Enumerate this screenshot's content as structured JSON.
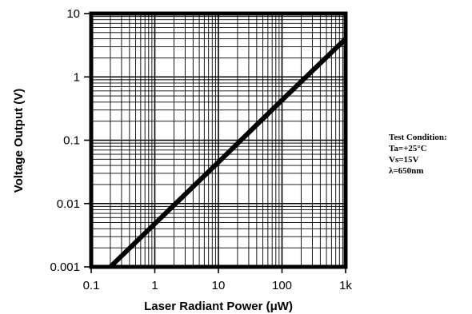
{
  "chart_data": {
    "type": "line",
    "xlabel": "Laser Radiant Power (μW)",
    "ylabel": "Voltage Output (V)",
    "x_scale": "log",
    "y_scale": "log",
    "xlim": [
      0.1,
      1000
    ],
    "ylim": [
      0.001,
      10
    ],
    "grid": true,
    "x_ticks": [
      {
        "value": 0.1,
        "label": "0.1"
      },
      {
        "value": 1,
        "label": "1"
      },
      {
        "value": 10,
        "label": "10"
      },
      {
        "value": 100,
        "label": "100"
      },
      {
        "value": 1000,
        "label": "1k"
      }
    ],
    "y_ticks": [
      {
        "value": 0.001,
        "label": "0.001"
      },
      {
        "value": 0.01,
        "label": "0.01"
      },
      {
        "value": 0.1,
        "label": "0.1"
      },
      {
        "value": 1,
        "label": "1"
      },
      {
        "value": 10,
        "label": "10"
      }
    ],
    "series": [
      {
        "color": "#000000",
        "x": [
          0.2,
          1,
          10,
          100,
          1000
        ],
        "y": [
          0.001,
          0.0048,
          0.045,
          0.43,
          4.0
        ]
      }
    ],
    "annotation": {
      "lines": [
        "Test Condition:",
        "Ta=+25°C",
        "Vs=15V",
        "λ=650nm"
      ]
    }
  }
}
